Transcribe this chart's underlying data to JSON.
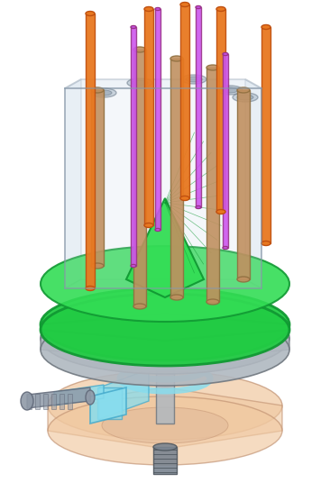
{
  "background_color": "#ffffff",
  "figsize": [
    3.66,
    5.36
  ],
  "dpi": 100,
  "components": {
    "box": {
      "fill_color": "#c8d8e8",
      "edge_color": "#8899aa",
      "alpha": 0.45
    },
    "gray_disk": {
      "fill_color": "#b0b8c0",
      "edge_color": "#707880",
      "alpha": 0.9
    },
    "base_body": {
      "fill_color": "#f0c8a0",
      "edge_color": "#c09070",
      "alpha": 0.6
    },
    "blue_tubes": {
      "fill_color": "#88ddee",
      "edge_color": "#44aacc",
      "alpha": 0.85
    },
    "orange_tubes": {
      "color": "#e87820",
      "edge_color": "#c05010"
    },
    "purple_tubes": {
      "color": "#cc55ee",
      "edge_color": "#993388"
    },
    "brown_rods": {
      "color": "#c09060",
      "edge_color": "#907040"
    },
    "connector": {
      "fill_color": "#909aa8",
      "edge_color": "#606878",
      "alpha": 0.9
    },
    "bottom_screw": {
      "fill_color": "#7a8490",
      "edge_color": "#505860"
    }
  }
}
